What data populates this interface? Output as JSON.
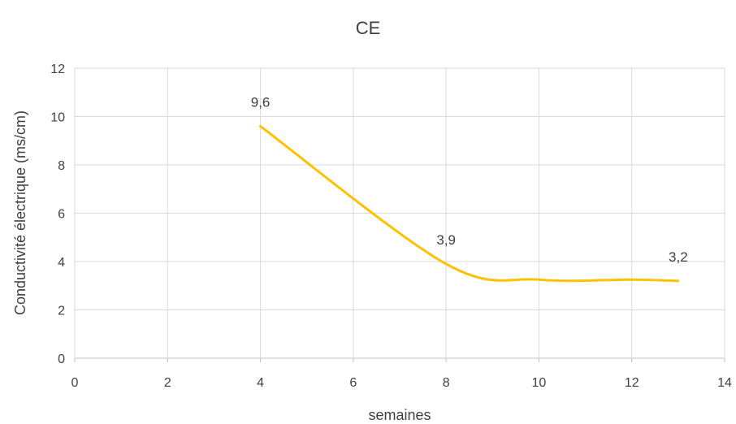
{
  "chart_data": {
    "type": "line",
    "title": "CE",
    "xlabel": "semaines",
    "ylabel": "Conductivité électrique (ms/cm)",
    "xlim": [
      0,
      14
    ],
    "ylim": [
      0,
      12
    ],
    "xticks": [
      0,
      2,
      4,
      6,
      8,
      10,
      12,
      14
    ],
    "yticks": [
      0,
      2,
      4,
      6,
      8,
      10,
      12
    ],
    "xtick_labels": [
      "0",
      "2",
      "4",
      "6",
      "8",
      "10",
      "12",
      "14"
    ],
    "ytick_labels": [
      "0",
      "2",
      "4",
      "6",
      "8",
      "10",
      "12"
    ],
    "grid": true,
    "smooth": true,
    "series": [
      {
        "color": "#FFC000",
        "x": [
          4,
          8,
          10,
          12,
          13
        ],
        "y": [
          9.6,
          3.9,
          3.25,
          3.25,
          3.2
        ]
      }
    ],
    "data_labels": [
      {
        "x": 4,
        "y": 9.6,
        "text": "9,6"
      },
      {
        "x": 8,
        "y": 3.9,
        "text": "3,9"
      },
      {
        "x": 13,
        "y": 3.2,
        "text": "3,2"
      }
    ],
    "colors": {
      "grid": "#D9D9D9",
      "axis": "#BFBFBF",
      "text": "#404040"
    }
  }
}
